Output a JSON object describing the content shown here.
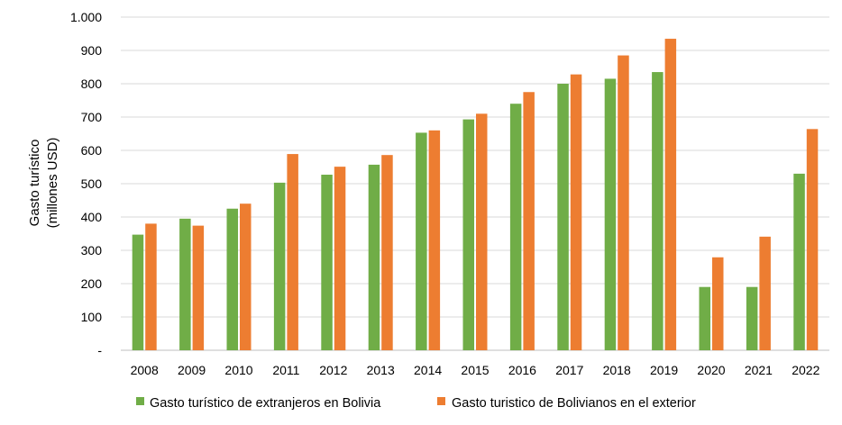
{
  "chart_data": {
    "type": "bar",
    "ylabel_lines": [
      "Gasto turístico",
      "(millones USD)"
    ],
    "categories": [
      "2008",
      "2009",
      "2010",
      "2011",
      "2012",
      "2013",
      "2014",
      "2015",
      "2016",
      "2017",
      "2018",
      "2019",
      "2020",
      "2021",
      "2022"
    ],
    "series": [
      {
        "name": "Gasto turístico de extranjeros en Bolivia",
        "color": "#70AD47",
        "values": [
          347,
          395,
          425,
          503,
          527,
          557,
          653,
          693,
          740,
          800,
          815,
          835,
          190,
          190,
          530
        ]
      },
      {
        "name": "Gasto turistico de Bolivianos en el exterior",
        "color": "#ED7D31",
        "values": [
          380,
          374,
          440,
          589,
          551,
          586,
          660,
          710,
          775,
          828,
          885,
          935,
          279,
          341,
          664
        ]
      }
    ],
    "ylim": [
      0,
      1000
    ],
    "yticks": [
      0,
      100,
      200,
      300,
      400,
      500,
      600,
      700,
      800,
      900,
      1000
    ],
    "ytick_labels": [
      "-",
      "100",
      "200",
      "300",
      "400",
      "500",
      "600",
      "700",
      "800",
      "900",
      "1.000"
    ],
    "grid": true,
    "legend_position": "bottom"
  }
}
